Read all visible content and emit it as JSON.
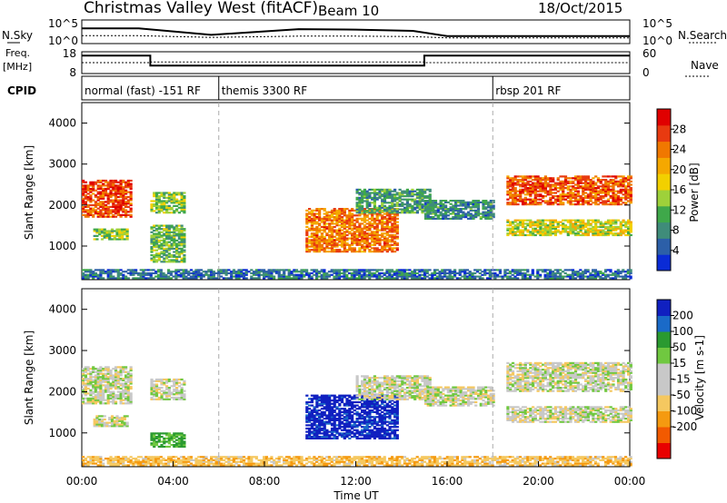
{
  "header": {
    "title": "Christmas Valley West (fitACF)",
    "beam": "Beam 10",
    "date": "18/Oct/2015"
  },
  "colors": {
    "power_scale": [
      "#0a2bd6",
      "#2c5fa8",
      "#3f8c7a",
      "#3fa84a",
      "#9ed13a",
      "#f2d000",
      "#f5a800",
      "#f07800",
      "#e83a10",
      "#e00000"
    ],
    "velocity_scale": [
      "#e80000",
      "#f25a00",
      "#f59a10",
      "#f5c860",
      "#c8c8c8",
      "#c8c8c8",
      "#70c840",
      "#2a9a30",
      "#1a6ac8",
      "#1020c0"
    ]
  },
  "chart_data": [
    {
      "panel": "sky-search",
      "type": "line",
      "left_label": "N.Sky",
      "right_label": "N.Search",
      "left_ticks": [
        "10^5",
        "10^0"
      ],
      "right_ticks": [
        "10^5",
        "10^0"
      ],
      "right_legend_style": "dotted",
      "x": [
        "00:00",
        "02:30",
        "05:40",
        "09:30",
        "12:00",
        "14:30",
        "16:00",
        "20:00",
        "24:00"
      ],
      "series": [
        {
          "name": "N.Sky",
          "values": [
            3.3,
            3.3,
            1.8,
            3.1,
            3.0,
            2.7,
            1.5,
            1.5,
            1.5
          ]
        },
        {
          "name": "N.Search",
          "values": [
            1.6,
            1.6,
            1.2,
            1.5,
            1.5,
            1.4,
            1.1,
            1.1,
            1.1
          ]
        }
      ]
    },
    {
      "panel": "frequency",
      "type": "line",
      "left_label": "Freq.",
      "left_unit": "[MHz]",
      "right_label": "Nave",
      "left_ticks": [
        "18",
        "8"
      ],
      "right_ticks": [
        "60",
        "0"
      ],
      "right_legend_style": "dotted",
      "ylim": [
        8,
        18
      ],
      "x": [
        "00:00",
        "03:00",
        "03:00",
        "15:00",
        "15:00",
        "24:00"
      ],
      "series": [
        {
          "name": "Freq.",
          "values": [
            16.5,
            16.5,
            11.5,
            11.5,
            16.5,
            16.5
          ]
        },
        {
          "name": "Nave",
          "values": [
            30,
            30,
            32,
            32,
            30,
            30
          ]
        }
      ]
    },
    {
      "panel": "cpid",
      "type": "table",
      "label": "CPID",
      "modes": [
        {
          "start": "00:00",
          "name": "normal (fast) -151 RF"
        },
        {
          "start": "06:00",
          "name": "themis 3300 RF"
        },
        {
          "start": "18:00",
          "name": "rbsp 201 RF"
        }
      ]
    },
    {
      "panel": "power",
      "type": "heatmap",
      "ylabel": "Slant Range [km]",
      "ylim": [
        180,
        4500
      ],
      "yticks": [
        1000,
        2000,
        3000,
        4000
      ],
      "colorbar_label": "Power [dB]",
      "colorbar_ticks": [
        4,
        8,
        12,
        16,
        20,
        24,
        28
      ],
      "colorbar_range": [
        0,
        32
      ],
      "vlines_hours": [
        6,
        18
      ],
      "patches": [
        {
          "t": [
            0.0,
            2.2
          ],
          "r": [
            1700,
            2600
          ],
          "v": 27
        },
        {
          "t": [
            0.5,
            2.0
          ],
          "r": [
            1150,
            1400
          ],
          "v": 14
        },
        {
          "t": [
            3.0,
            4.5
          ],
          "r": [
            1800,
            2300
          ],
          "v": 14
        },
        {
          "t": [
            3.0,
            4.5
          ],
          "r": [
            600,
            1500
          ],
          "v": 12
        },
        {
          "t": [
            9.8,
            13.8
          ],
          "r": [
            850,
            1900
          ],
          "v": 24
        },
        {
          "t": [
            12.0,
            15.2
          ],
          "r": [
            1800,
            2400
          ],
          "v": 10
        },
        {
          "t": [
            15.0,
            18.0
          ],
          "r": [
            1650,
            2100
          ],
          "v": 8
        },
        {
          "t": [
            18.6,
            24.0
          ],
          "r": [
            2000,
            2700
          ],
          "v": 26
        },
        {
          "t": [
            18.6,
            24.0
          ],
          "r": [
            1250,
            1650
          ],
          "v": 16
        },
        {
          "t": [
            0.0,
            24.0
          ],
          "r": [
            200,
            420
          ],
          "v": 6
        }
      ]
    },
    {
      "panel": "velocity",
      "type": "heatmap",
      "xlabel": "Time UT",
      "ylabel": "Slant Range [km]",
      "ylim": [
        180,
        4500
      ],
      "yticks": [
        1000,
        2000,
        3000,
        4000
      ],
      "xticks": [
        "00:00",
        "04:00",
        "08:00",
        "12:00",
        "16:00",
        "20:00",
        "00:00"
      ],
      "colorbar_label": "Velocity [m s-1]",
      "colorbar_ticks": [
        200,
        100,
        50,
        15,
        -15,
        -50,
        -100,
        -200
      ],
      "vlines_hours": [
        6,
        18
      ],
      "patches": [
        {
          "t": [
            0.0,
            2.2
          ],
          "r": [
            1700,
            2600
          ],
          "v": 0
        },
        {
          "t": [
            0.5,
            2.0
          ],
          "r": [
            1150,
            1400
          ],
          "v": 0
        },
        {
          "t": [
            3.0,
            4.5
          ],
          "r": [
            1800,
            2300
          ],
          "v": 0
        },
        {
          "t": [
            3.0,
            4.5
          ],
          "r": [
            650,
            1000
          ],
          "v": 60
        },
        {
          "t": [
            9.8,
            13.8
          ],
          "r": [
            850,
            1900
          ],
          "v": 220
        },
        {
          "t": [
            12.0,
            15.2
          ],
          "r": [
            1800,
            2400
          ],
          "v": 0
        },
        {
          "t": [
            15.0,
            18.0
          ],
          "r": [
            1650,
            2100
          ],
          "v": 0
        },
        {
          "t": [
            18.6,
            24.0
          ],
          "r": [
            2000,
            2700
          ],
          "v": 0
        },
        {
          "t": [
            18.6,
            24.0
          ],
          "r": [
            1250,
            1650
          ],
          "v": 0
        },
        {
          "t": [
            0.0,
            24.0
          ],
          "r": [
            200,
            420
          ],
          "v": -40
        }
      ]
    }
  ]
}
